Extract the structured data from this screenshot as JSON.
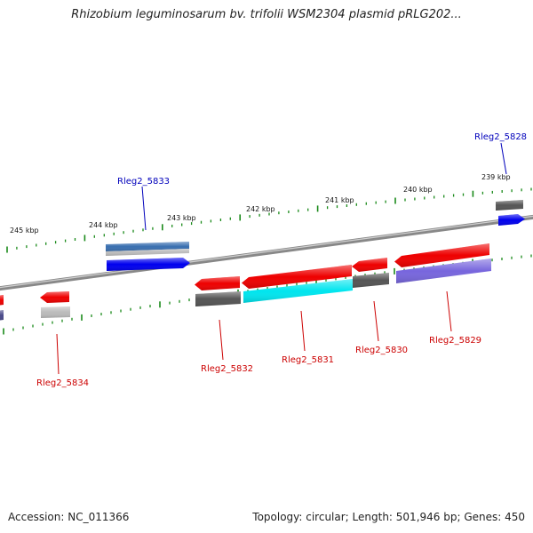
{
  "title": "Rhizobium leguminosarum bv. trifolii WSM2304 plasmid pRLG202...",
  "footer": {
    "accession": "Accession: NC_011366",
    "summary": "Topology: circular; Length: 501,946 bp; Genes: 450"
  },
  "colors": {
    "backbone": "#888888",
    "tick": "#1a8a1a",
    "label_forward": "#0000bb",
    "label_reverse": "#cc0000",
    "red": "#ee0000",
    "blue": "#0000ee",
    "gray": "#555555",
    "lightgray": "#bbbbbb",
    "steelblue": "#3a6fb0",
    "cyan": "#00e5ee",
    "lavender": "#7766dd",
    "darkpurple": "#4a4a8a"
  },
  "scale_labels": [
    "245 kbp",
    "244 kbp",
    "243 kbp",
    "242 kbp",
    "241 kbp",
    "240 kbp",
    "239 kbp"
  ],
  "gene_labels": [
    "Rleg2_5828",
    "Rleg2_5833",
    "Rleg2_5834",
    "Rleg2_5832",
    "Rleg2_5831",
    "Rleg2_5830",
    "Rleg2_5829"
  ]
}
